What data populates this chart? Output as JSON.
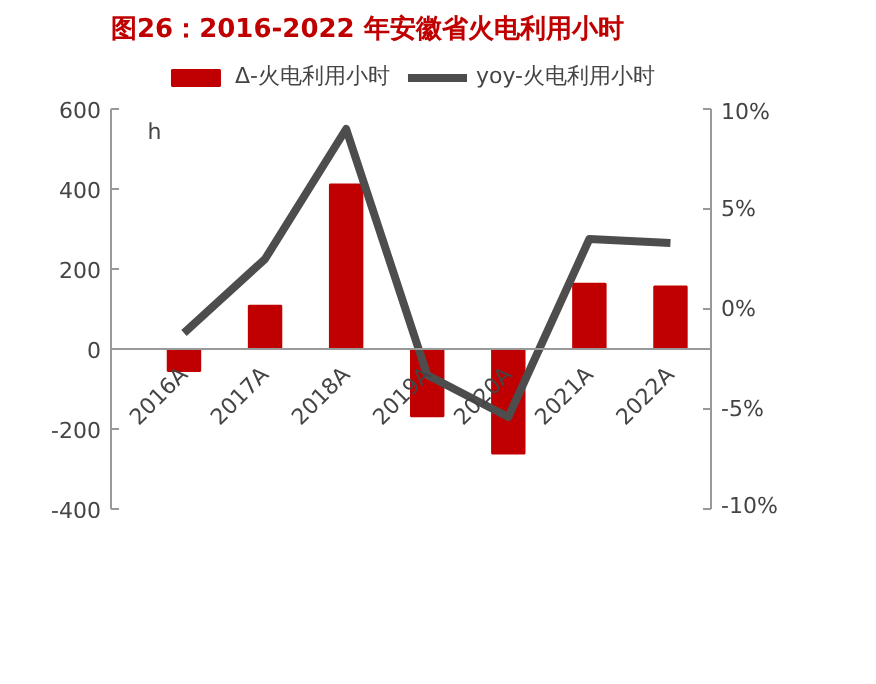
{
  "chart_data": {
    "type": "bar",
    "title": "图26：2016-2022 年安徽省火电利用小时",
    "ylabel": "h",
    "categories": [
      "2016A",
      "2017A",
      "2018A",
      "2019A",
      "2020A",
      "2021A",
      "2022A"
    ],
    "series": [
      {
        "name": "Δ-火电利用小时",
        "type": "bar",
        "color": "#c00000",
        "values": [
          -55,
          108,
          411,
          -168,
          -261,
          163,
          156
        ]
      },
      {
        "name": "yoy-火电利用小时",
        "type": "line",
        "axis": "y2",
        "color": "#4d4d4d",
        "values": [
          -1.2,
          2.5,
          9.0,
          -3.3,
          -5.4,
          3.5,
          3.3
        ]
      }
    ],
    "ylim": [
      -400,
      600
    ],
    "yticks": [
      -400,
      -200,
      0,
      200,
      400,
      600
    ],
    "y2lim": [
      -10,
      10
    ],
    "y2ticks": [
      {
        "value": -10,
        "label": "-10%"
      },
      {
        "value": -5,
        "label": "-5%"
      },
      {
        "value": 0,
        "label": "0%"
      },
      {
        "value": 5,
        "label": "5%"
      },
      {
        "value": 10,
        "label": "10%"
      }
    ],
    "legend": "top",
    "grid": false
  }
}
